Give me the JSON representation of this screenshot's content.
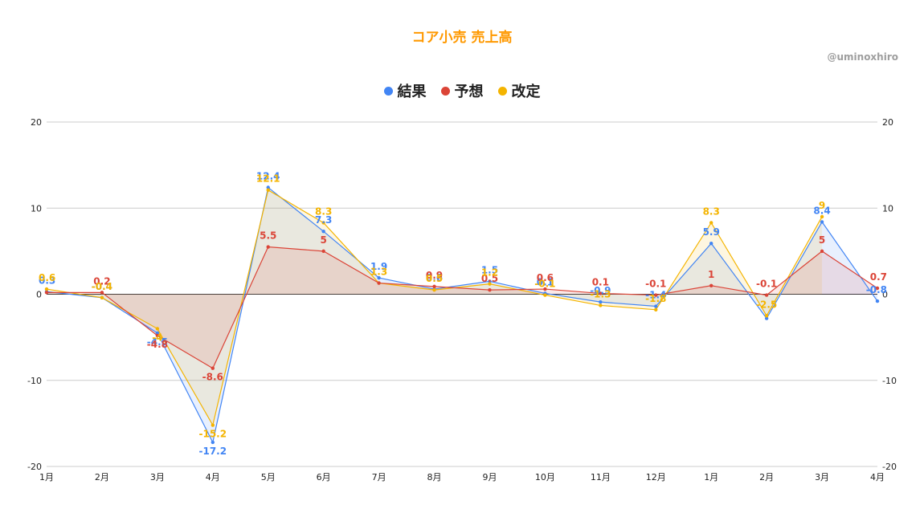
{
  "title": "コア小売 売上高",
  "credit": "@uminoxhiro",
  "colors": {
    "title": "#ff9900",
    "result": "#4285f4",
    "forecast": "#db4437",
    "revised": "#f4b400",
    "grid": "#cccccc",
    "zero": "#333333"
  },
  "legend": [
    {
      "label": "結果",
      "color": "#4285f4",
      "icon": "dot-icon"
    },
    {
      "label": "予想",
      "color": "#db4437",
      "icon": "dot-icon"
    },
    {
      "label": "改定",
      "color": "#f4b400",
      "icon": "dot-icon"
    }
  ],
  "chart_data": {
    "type": "area",
    "categories": [
      "1月",
      "2月",
      "3月",
      "4月",
      "5月",
      "6月",
      "7月",
      "8月",
      "9月",
      "10月",
      "11月",
      "12月",
      "1月",
      "2月",
      "3月",
      "4月"
    ],
    "ylim": [
      -20,
      20
    ],
    "yticks": [
      -20,
      -10,
      0,
      10,
      20
    ],
    "ytick_labels": [
      "-20",
      "-10",
      "0",
      "10",
      "20"
    ],
    "grid": true,
    "legend_position": "top",
    "right_axis": true,
    "series": [
      {
        "name": "結果",
        "color": "#4285f4",
        "values": [
          0.3,
          -0.4,
          -4.5,
          -17.2,
          12.4,
          7.3,
          1.9,
          0.6,
          1.5,
          0.1,
          -0.9,
          -1.4,
          5.9,
          -2.8,
          8.4,
          -0.8
        ],
        "labels": [
          "0.3",
          "-0.4",
          "-4.5",
          "-17.2",
          "12.4",
          "7.3",
          "1.9",
          "0.6",
          "1.5",
          "0.1",
          "-0.9",
          "-1.4",
          "5.9",
          "",
          "8.4",
          "-0.8"
        ]
      },
      {
        "name": "予想",
        "color": "#db4437",
        "values": [
          0.2,
          0.2,
          -4.8,
          -8.6,
          5.5,
          5,
          1.3,
          0.9,
          0.5,
          0.6,
          0.1,
          -0.1,
          1,
          -0.1,
          5,
          0.7
        ],
        "labels": [
          "",
          "0.2",
          "-4.8",
          "-8.6",
          "5.5",
          "5",
          "",
          "0.9",
          "0.5",
          "0.6",
          "0.1",
          "-0.1",
          "1",
          "-0.1",
          "5",
          "0.7"
        ]
      },
      {
        "name": "改定",
        "color": "#f4b400",
        "values": [
          0.6,
          -0.4,
          -4,
          -15.2,
          12.1,
          8.3,
          1.3,
          0.5,
          1.2,
          -0.1,
          -1.3,
          -1.8,
          8.3,
          -2.5,
          9,
          null
        ],
        "labels": [
          "0.6",
          "-0.4",
          "-4",
          "-15.2",
          "12.1",
          "8.3",
          "1.3",
          "0.5",
          "1.2",
          "-0.1",
          "-1.3",
          "-1.8",
          "8.3",
          "-2.5",
          "9",
          ""
        ]
      }
    ]
  }
}
